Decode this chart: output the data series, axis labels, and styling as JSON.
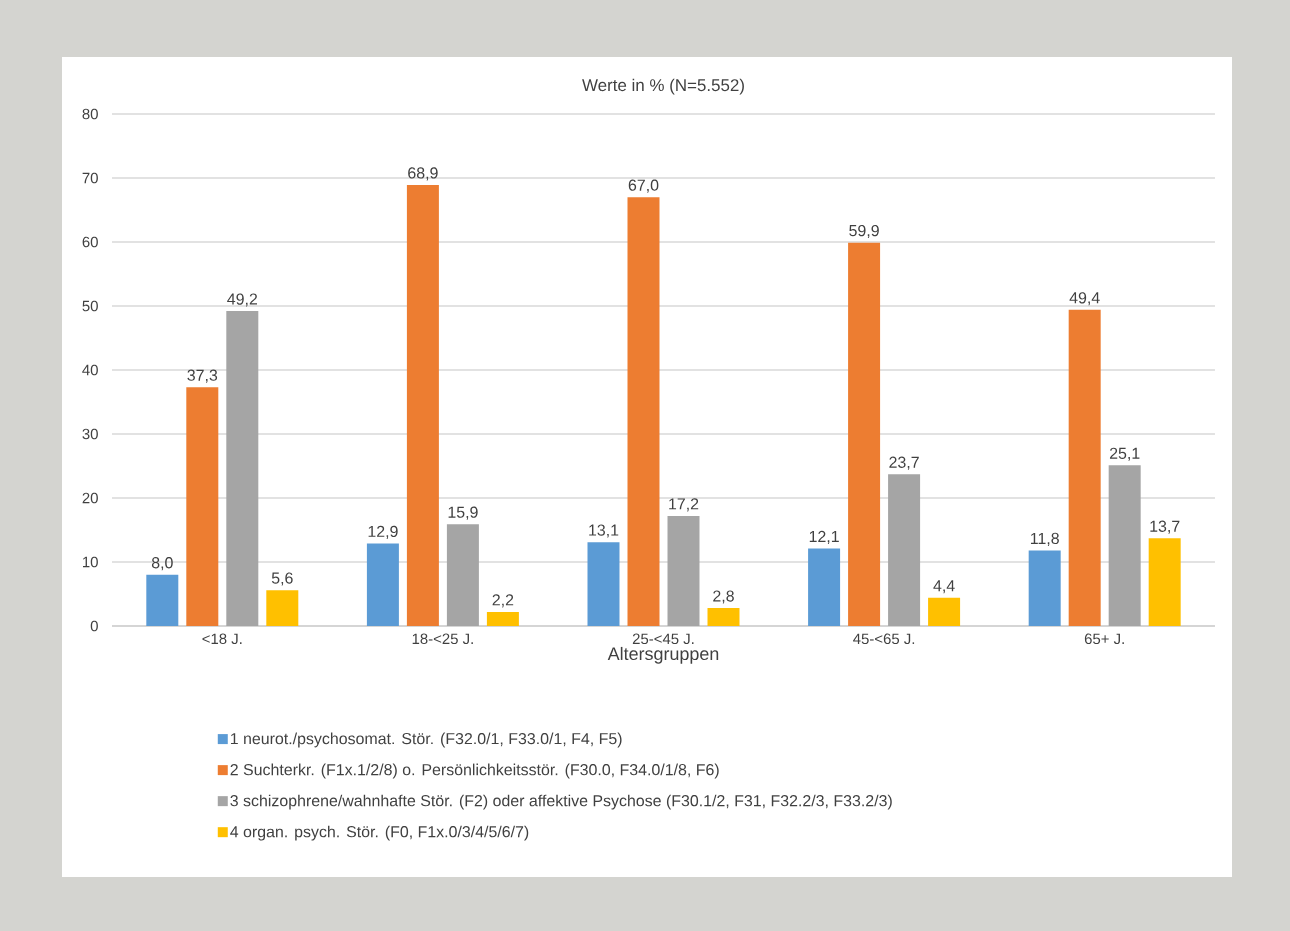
{
  "chart_data": {
    "type": "bar",
    "title": "Werte in %   (N=5.552)",
    "xlabel": "Altersgruppen",
    "categories": [
      "<18 J.",
      "18-<25 J.",
      "25-<45 J.",
      "45-<65 J.",
      "65+ J."
    ],
    "series": [
      {
        "name": "1 neurot./psychosomat. Stör. (F32.0/1, F33.0/1, F4, F5)",
        "color": "#5b9bd5",
        "values": [
          8.0,
          12.9,
          13.1,
          12.1,
          11.8
        ],
        "value_labels": [
          "8,0",
          "12,9",
          "13,1",
          "12,1",
          "11,8"
        ]
      },
      {
        "name": "2 Suchterkr. (F1x.1/2/8) o. Persönlichkeitsstör. (F30.0, F34.0/1/8, F6)",
        "color": "#ed7d31",
        "values": [
          37.3,
          68.9,
          67.0,
          59.9,
          49.4
        ],
        "value_labels": [
          "37,3",
          "68,9",
          "67,0",
          "59,9",
          "49,4"
        ]
      },
      {
        "name": "3 schizophrene/wahnhafte Stör. (F2) oder affektive Psychose (F30.1/2, F31, F32.2/3, F33.2/3)",
        "color": "#a5a5a5",
        "values": [
          49.2,
          15.9,
          17.2,
          23.7,
          25.1
        ],
        "value_labels": [
          "49,2",
          "15,9",
          "17,2",
          "23,7",
          "25,1"
        ]
      },
      {
        "name": "4 organ. psych. Stör. (F0, F1x.0/3/4/5/6/7)",
        "color": "#ffc000",
        "values": [
          5.6,
          2.2,
          2.8,
          4.4,
          13.7
        ],
        "value_labels": [
          "5,6",
          "2,2",
          "2,8",
          "4,4",
          "13,7"
        ]
      }
    ],
    "ylim": [
      0,
      80
    ],
    "yticks": [
      0,
      10,
      20,
      30,
      40,
      50,
      60,
      70,
      80
    ],
    "grid": "y",
    "legend": "bottom"
  }
}
